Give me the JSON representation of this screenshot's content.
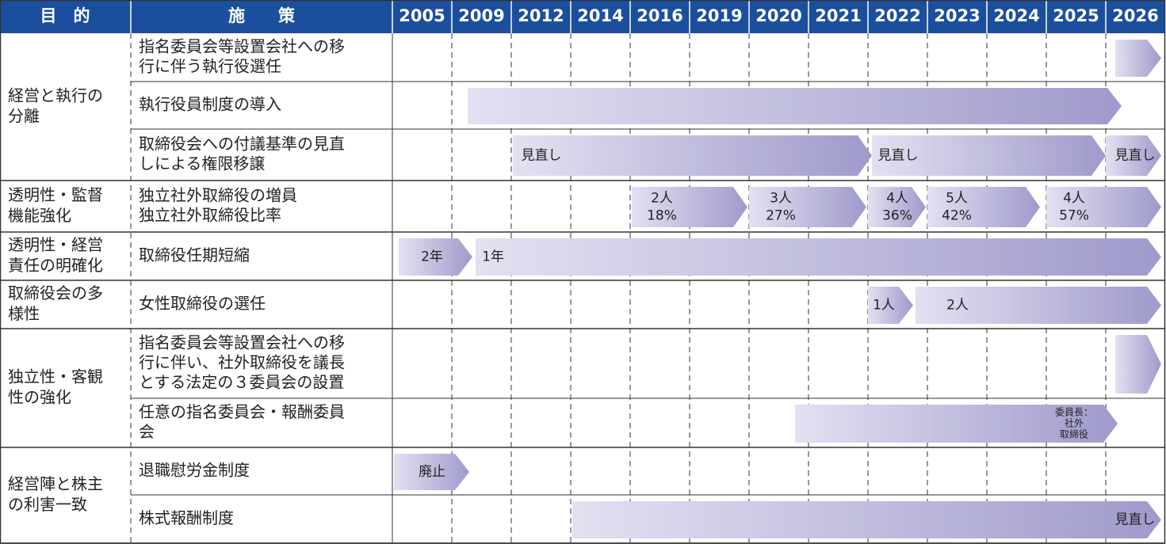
{
  "header": {
    "purpose": "目　的",
    "measure": "施　　策",
    "years": [
      "2005",
      "2009",
      "2012",
      "2014",
      "2016",
      "2019",
      "2020",
      "2021",
      "2022",
      "2023",
      "2024",
      "2025",
      "2026"
    ]
  },
  "groups": [
    {
      "purpose": [
        "経営と執行の",
        "分離"
      ],
      "measures": [
        {
          "text": [
            "指名委員会等設置会社への移",
            "行に伴う執行役選任"
          ],
          "arrows": [
            {}
          ]
        },
        {
          "text": [
            "執行役員制度の導入"
          ],
          "arrows": [
            {}
          ]
        },
        {
          "text": [
            "取締役会への付議基準の見直",
            "しによる権限移譲"
          ],
          "arrows": [
            {
              "label": [
                "見直し"
              ]
            },
            {
              "label": [
                "見直し"
              ]
            },
            {
              "label": [
                "見直し"
              ]
            }
          ]
        }
      ]
    },
    {
      "purpose": [
        "透明性・監督",
        "機能強化"
      ],
      "measures": [
        {
          "text": [
            "独立社外取締役の増員",
            "独立社外取締役比率"
          ],
          "arrows": [
            {
              "label": [
                "2人",
                "18%"
              ]
            },
            {
              "label": [
                "3人",
                "27%"
              ]
            },
            {
              "label": [
                "4人",
                "36%"
              ]
            },
            {
              "label": [
                "5人",
                "42%"
              ]
            },
            {
              "label": [
                "4人",
                "57%"
              ]
            }
          ]
        }
      ]
    },
    {
      "purpose": [
        "透明性・経営",
        "責任の明確化"
      ],
      "measures": [
        {
          "text": [
            "取締役任期短縮"
          ],
          "arrows": [
            {
              "label": [
                "2年"
              ]
            },
            {
              "label": [
                "1年"
              ]
            }
          ]
        }
      ]
    },
    {
      "purpose": [
        "取締役会の多",
        "様性"
      ],
      "measures": [
        {
          "text": [
            "女性取締役の選任"
          ],
          "arrows": [
            {
              "label": [
                "1人"
              ]
            },
            {
              "label": [
                "2人"
              ]
            }
          ]
        }
      ]
    },
    {
      "purpose": [
        "独立性・客観",
        "性の強化"
      ],
      "measures": [
        {
          "text": [
            "指名委員会等設置会社への移",
            "行に伴い、社外取締役を議長",
            "とする法定の３委員会の設置"
          ],
          "arrows": [
            {}
          ]
        },
        {
          "text": [
            "任意の指名委員会・報酬委員",
            "会"
          ],
          "arrows": [
            {
              "label": [
                "委員長：",
                "社外",
                "取締役"
              ]
            }
          ]
        }
      ]
    },
    {
      "purpose": [
        "経営陣と株主",
        "の利害一致"
      ],
      "measures": [
        {
          "text": [
            "退職慰労金制度"
          ],
          "arrows": [
            {
              "label": [
                "廃止"
              ]
            }
          ]
        },
        {
          "text": [
            "株式報酬制度"
          ],
          "arrows": [
            {
              "label": [
                "見直し"
              ]
            }
          ]
        }
      ]
    }
  ]
}
